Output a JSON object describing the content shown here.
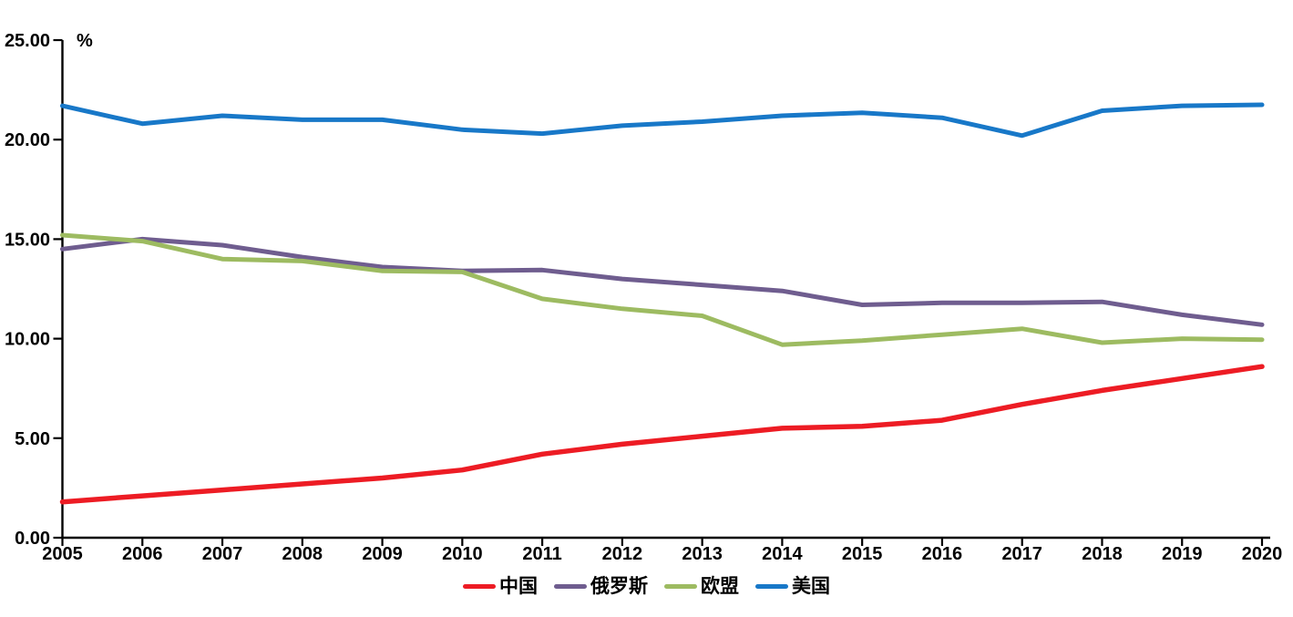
{
  "chart_data": {
    "type": "line",
    "title": "",
    "xlabel": "",
    "ylabel": "%",
    "ylim": [
      0,
      25
    ],
    "y_ticks": [
      0,
      5,
      10,
      15,
      20,
      25
    ],
    "y_tick_labels": [
      "0.00",
      "5.00",
      "10.00",
      "15.00",
      "20.00",
      "25.00"
    ],
    "categories": [
      "2005",
      "2006",
      "2007",
      "2008",
      "2009",
      "2010",
      "2011",
      "2012",
      "2013",
      "2014",
      "2015",
      "2016",
      "2017",
      "2018",
      "2019",
      "2020"
    ],
    "series": [
      {
        "id": "china",
        "name": "中国",
        "color": "#ED1C24",
        "values": [
          1.8,
          2.1,
          2.4,
          2.7,
          3.0,
          3.4,
          4.2,
          4.7,
          5.1,
          5.5,
          5.6,
          5.9,
          6.7,
          7.4,
          8.0,
          8.6
        ]
      },
      {
        "id": "russia",
        "name": "俄罗斯",
        "color": "#6F5D8F",
        "values": [
          14.5,
          15.0,
          14.7,
          14.1,
          13.6,
          13.4,
          13.45,
          13.0,
          12.7,
          12.4,
          11.7,
          11.8,
          11.8,
          11.85,
          11.2,
          10.7
        ]
      },
      {
        "id": "eu",
        "name": "欧盟",
        "color": "#9DBB61",
        "values": [
          15.2,
          14.9,
          14.0,
          13.9,
          13.4,
          13.35,
          12.0,
          11.5,
          11.15,
          9.7,
          9.9,
          10.2,
          10.5,
          9.8,
          10.0,
          9.95
        ]
      },
      {
        "id": "usa",
        "name": "美国",
        "color": "#1878C8",
        "values": [
          21.7,
          20.8,
          21.2,
          21.0,
          21.0,
          20.5,
          20.3,
          20.7,
          20.9,
          21.2,
          21.35,
          21.1,
          20.2,
          21.45,
          21.7,
          21.75
        ]
      }
    ],
    "grid": false,
    "legend_position": "bottom",
    "axis_color": "#000000"
  }
}
